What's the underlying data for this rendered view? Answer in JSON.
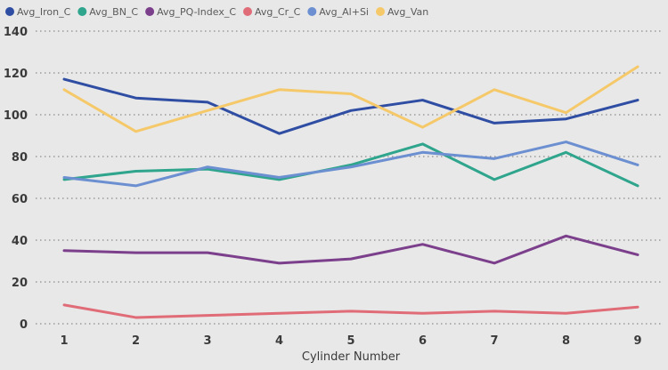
{
  "chart_data": {
    "type": "line",
    "xlabel": "Cylinder Number",
    "ylabel": "",
    "ylim": [
      0,
      140
    ],
    "yticks": [
      0,
      20,
      40,
      60,
      80,
      100,
      120,
      140
    ],
    "x": [
      1,
      2,
      3,
      4,
      5,
      6,
      7,
      8,
      9
    ],
    "grid": "horizontal dotted",
    "legend_position": "top-left",
    "series": [
      {
        "name": "Avg_Iron_C",
        "color": "#2f4ea3",
        "values": [
          117,
          108,
          106,
          91,
          102,
          107,
          96,
          98,
          107
        ]
      },
      {
        "name": "Avg_BN_C",
        "color": "#2ea58c",
        "values": [
          69,
          73,
          74,
          69,
          76,
          86,
          69,
          82,
          66
        ]
      },
      {
        "name": "Avg_PQ-Index_C",
        "color": "#7b3f8c",
        "values": [
          35,
          34,
          34,
          29,
          31,
          38,
          29,
          42,
          33
        ]
      },
      {
        "name": "Avg_Cr_C",
        "color": "#e06c78",
        "values": [
          9,
          3,
          4,
          5,
          6,
          5,
          6,
          5,
          8
        ]
      },
      {
        "name": "Avg_Al+Si",
        "color": "#6b8fd0",
        "values": [
          70,
          66,
          75,
          70,
          75,
          82,
          79,
          87,
          76
        ]
      },
      {
        "name": "Avg_Van",
        "color": "#f5c96a",
        "values": [
          112,
          92,
          102,
          112,
          110,
          94,
          112,
          101,
          123
        ]
      }
    ]
  }
}
